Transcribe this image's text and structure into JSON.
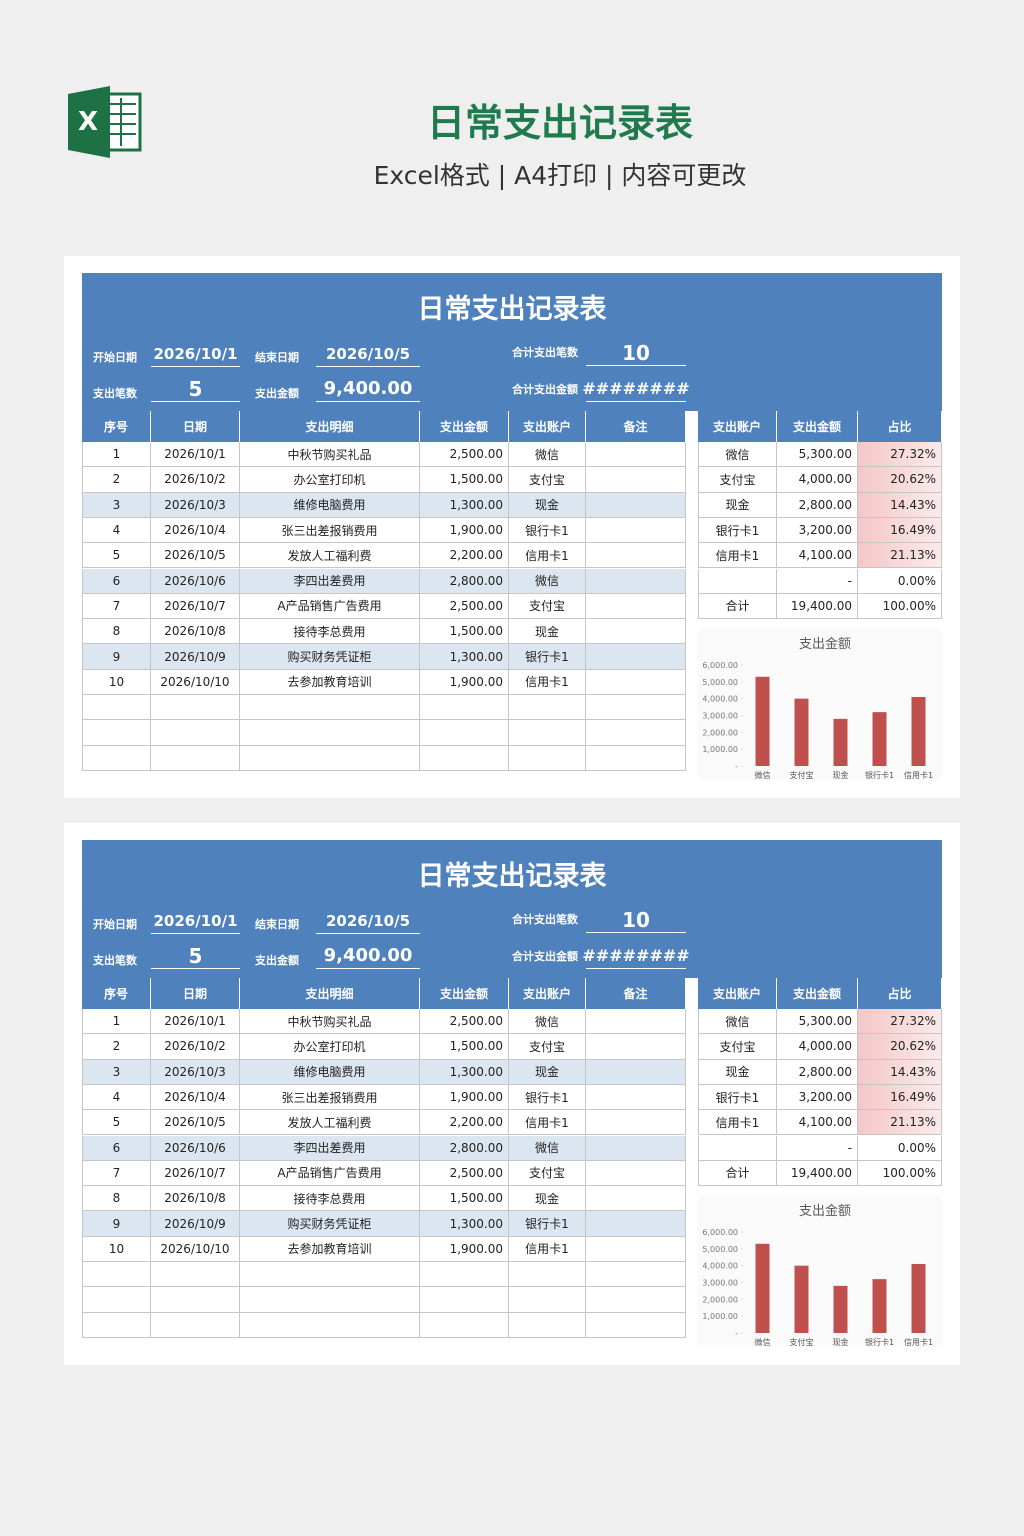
{
  "header": {
    "title": "日常支出记录表",
    "subtitle": "Excel格式 | A4打印 | 内容可更改"
  },
  "sheets": [
    {
      "title": "日常支出记录表",
      "info": {
        "start_label": "开始日期",
        "start": "2026/10/1",
        "end_label": "结束日期",
        "end": "2026/10/5",
        "count_label": "支出笔数",
        "count": 5,
        "amount_label": "支出金额",
        "amount": "9,400.00",
        "total_count_label": "合计支出笔数",
        "total_count": 10,
        "total_amount_label": "合计支出金额",
        "total_amount": "########"
      },
      "table": {
        "columns": [
          "序号",
          "日期",
          "支出明细",
          "支出金额",
          "支出账户",
          "备注"
        ],
        "rows": [
          [
            1,
            "2026/10/1",
            "中秋节购买礼品",
            "2,500.00",
            "微信"
          ],
          [
            2,
            "2026/10/2",
            "办公室打印机",
            "1,500.00",
            "支付宝"
          ],
          [
            3,
            "2026/10/3",
            "维修电脑费用",
            "1,300.00",
            "现金"
          ],
          [
            4,
            "2026/10/4",
            "张三出差报销费用",
            "1,900.00",
            "银行卡1"
          ],
          [
            5,
            "2026/10/5",
            "发放人工福利费",
            "2,200.00",
            "信用卡1"
          ],
          [
            6,
            "2026/10/6",
            "李四出差费用",
            "2,800.00",
            "微信"
          ],
          [
            7,
            "2026/10/7",
            "A产品销售广告费用",
            "2,500.00",
            "支付宝"
          ],
          [
            8,
            "2026/10/8",
            "接待李总费用",
            "1,500.00",
            "现金"
          ],
          [
            9,
            "2026/10/9",
            "购买财务凭证柜",
            "1,300.00",
            "银行卡1"
          ],
          [
            10,
            "2026/10/10",
            "去参加教育培训",
            "1,900.00",
            "信用卡1"
          ]
        ]
      },
      "summary": {
        "columns": [
          "支出账户",
          "支出金额",
          "占比"
        ],
        "rows": [
          [
            "微信",
            "5,300.00",
            "27.32%"
          ],
          [
            "支付宝",
            "4,000.00",
            "20.62%"
          ],
          [
            "现金",
            "2,800.00",
            "14.43%"
          ],
          [
            "银行卡1",
            "3,200.00",
            "16.49%"
          ],
          [
            "信用卡1",
            "4,100.00",
            "21.13%"
          ],
          [
            null,
            "-",
            "0.00%"
          ],
          [
            "合计",
            "19,400.00",
            "100.00%"
          ]
        ]
      },
      "chart_data": {
        "type": "bar",
        "title": "支出金额",
        "categories": [
          "微信",
          "支付宝",
          "现金",
          "银行卡1",
          "信用卡1"
        ],
        "values": [
          5300,
          4000,
          2800,
          3200,
          4100
        ],
        "color": "#c0504d",
        "ylim": [
          0,
          6000
        ],
        "yticks": [
          {
            "value": 0,
            "label": "-"
          },
          {
            "value": 1000,
            "label": "1,000.00"
          },
          {
            "value": 2000,
            "label": "2,000.00"
          },
          {
            "value": 3000,
            "label": "3,000.00"
          },
          {
            "value": 4000,
            "label": "4,000.00"
          },
          {
            "value": 5000,
            "label": "5,000.00"
          },
          {
            "value": 6000,
            "label": "6,000.00"
          }
        ]
      }
    },
    {
      "title": "日常支出记录表",
      "info": {
        "start_label": "开始日期",
        "start": "2026/10/1",
        "end_label": "结束日期",
        "end": "2026/10/5",
        "count_label": "支出笔数",
        "count": 5,
        "amount_label": "支出金额",
        "amount": "9,400.00",
        "total_count_label": "合计支出笔数",
        "total_count": 10,
        "total_amount_label": "合计支出金额",
        "total_amount": "########"
      },
      "table": {
        "columns": [
          "序号",
          "日期",
          "支出明细",
          "支出金额",
          "支出账户",
          "备注"
        ],
        "rows": [
          [
            1,
            "2026/10/1",
            "中秋节购买礼品",
            "2,500.00",
            "微信"
          ],
          [
            2,
            "2026/10/2",
            "办公室打印机",
            "1,500.00",
            "支付宝"
          ],
          [
            3,
            "2026/10/3",
            "维修电脑费用",
            "1,300.00",
            "现金"
          ],
          [
            4,
            "2026/10/4",
            "张三出差报销费用",
            "1,900.00",
            "银行卡1"
          ],
          [
            5,
            "2026/10/5",
            "发放人工福利费",
            "2,200.00",
            "信用卡1"
          ],
          [
            6,
            "2026/10/6",
            "李四出差费用",
            "2,800.00",
            "微信"
          ],
          [
            7,
            "2026/10/7",
            "A产品销售广告费用",
            "2,500.00",
            "支付宝"
          ],
          [
            8,
            "2026/10/8",
            "接待李总费用",
            "1,500.00",
            "现金"
          ],
          [
            9,
            "2026/10/9",
            "购买财务凭证柜",
            "1,300.00",
            "银行卡1"
          ],
          [
            10,
            "2026/10/10",
            "去参加教育培训",
            "1,900.00",
            "信用卡1"
          ]
        ]
      },
      "summary": {
        "columns": [
          "支出账户",
          "支出金额",
          "占比"
        ],
        "rows": [
          [
            "微信",
            "5,300.00",
            "27.32%"
          ],
          [
            "支付宝",
            "4,000.00",
            "20.62%"
          ],
          [
            "现金",
            "2,800.00",
            "14.43%"
          ],
          [
            "银行卡1",
            "3,200.00",
            "16.49%"
          ],
          [
            "信用卡1",
            "4,100.00",
            "21.13%"
          ],
          [
            null,
            "-",
            "0.00%"
          ],
          [
            "合计",
            "19,400.00",
            "100.00%"
          ]
        ]
      },
      "chart_data": {
        "type": "bar",
        "title": "支出金额",
        "categories": [
          "微信",
          "支付宝",
          "现金",
          "银行卡1",
          "信用卡1"
        ],
        "values": [
          5300,
          4000,
          2800,
          3200,
          4100
        ],
        "color": "#c0504d",
        "ylim": [
          0,
          6000
        ],
        "yticks": [
          {
            "value": 0,
            "label": "-"
          },
          {
            "value": 1000,
            "label": "1,000.00"
          },
          {
            "value": 2000,
            "label": "2,000.00"
          },
          {
            "value": 3000,
            "label": "3,000.00"
          },
          {
            "value": 4000,
            "label": "4,000.00"
          },
          {
            "value": 5000,
            "label": "5,000.00"
          },
          {
            "value": 6000,
            "label": "6,000.00"
          }
        ]
      }
    }
  ]
}
